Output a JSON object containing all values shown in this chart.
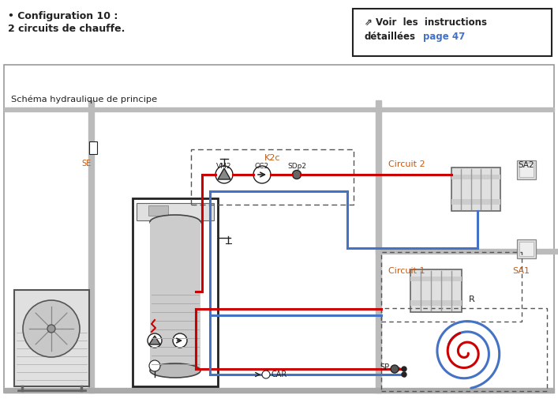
{
  "title_line1": "• Configuration 10 :",
  "title_line2": "2 circuits de chauffe.",
  "box_text_main": "⇗ Voir  les  instructions",
  "box_text_detail": "détaillées",
  "box_text_page": "page 47",
  "schema_title": "Schéma hydraulique de principe",
  "label_SE": "SE",
  "label_K2c": "K2c",
  "label_VM2": "VM2",
  "label_CC2": "CC2",
  "label_SDp2": "SDp2",
  "label_Circuit2": "Circuit 2",
  "label_SA2": "SA2",
  "label_Circuit1": "Circuit 1",
  "label_SA1": "SA1",
  "label_R": "R",
  "label_SP": "SP",
  "label_CAR": "CAR",
  "red": "#cc0000",
  "blue": "#4472c4",
  "orange": "#c55a11",
  "dark": "#222222",
  "gray": "#888888",
  "light_gray": "#cccccc",
  "wall_gray": "#bbbbbb",
  "bg": "#ffffff"
}
